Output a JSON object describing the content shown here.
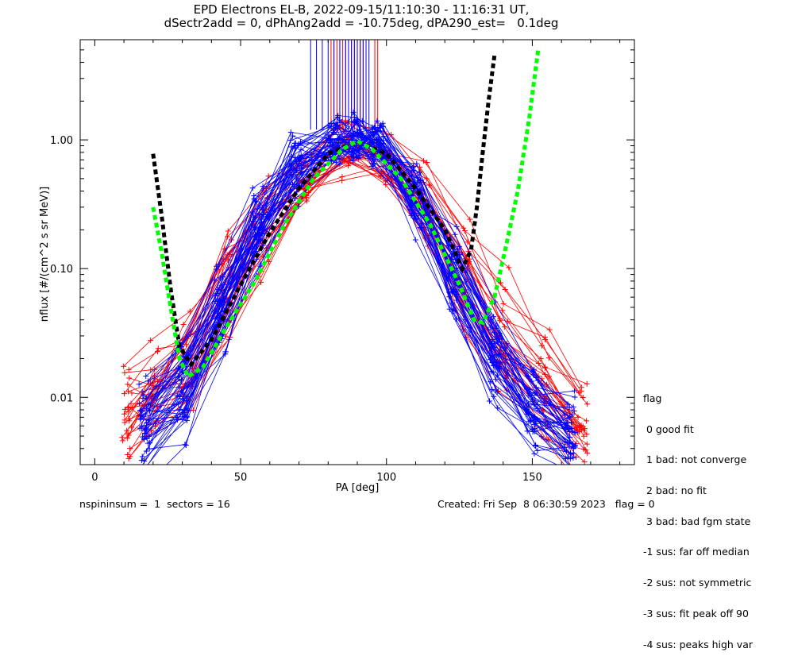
{
  "header": {
    "title_line1": "EPD Electrons EL-B, 2022-09-15/11:10:30 - 11:16:31 UT,",
    "title_line2": "dSectr2add = 0, dPhAng2add = -10.75deg, dPA290_est=   0.1deg"
  },
  "chart_data": {
    "type": "line",
    "xlabel": "PA [deg]",
    "ylabel": "nflux [#/(cm^2 s sr MeV)]",
    "xlim": [
      -5,
      185
    ],
    "ylim": [
      0.003,
      6.0
    ],
    "yscale": "log",
    "x_ticks": [
      0,
      50,
      100,
      150
    ],
    "x_tick_labels": [
      "0",
      "50",
      "100",
      "150"
    ],
    "y_ticks": [
      0.01,
      0.1,
      1.0
    ],
    "y_tick_labels": [
      "0.01",
      "0.10",
      "1.00"
    ],
    "colors": {
      "red_series": "#ff0000",
      "blue_series": "#0000ff",
      "black_fit": "#000000",
      "green_fit": "#00ff00"
    },
    "fit_curves": [
      {
        "color": "black",
        "x": [
          20,
          23,
          26,
          29,
          33,
          40,
          50,
          60,
          70,
          80,
          90,
          100,
          110,
          120,
          126,
          129,
          131,
          133,
          135,
          137
        ],
        "y": [
          0.78,
          0.25,
          0.07,
          0.025,
          0.018,
          0.028,
          0.075,
          0.19,
          0.42,
          0.78,
          0.97,
          0.78,
          0.42,
          0.2,
          0.1,
          0.14,
          0.3,
          0.8,
          2.0,
          4.5
        ]
      },
      {
        "color": "green",
        "x": [
          20,
          23,
          26,
          29,
          32,
          37,
          45,
          55,
          65,
          75,
          85,
          90,
          95,
          105,
          115,
          125,
          130,
          133,
          137,
          141,
          145,
          149,
          152
        ],
        "y": [
          0.3,
          0.13,
          0.05,
          0.02,
          0.0145,
          0.017,
          0.035,
          0.08,
          0.22,
          0.5,
          0.85,
          0.98,
          0.85,
          0.5,
          0.22,
          0.075,
          0.04,
          0.038,
          0.06,
          0.15,
          0.4,
          1.5,
          5.0
        ]
      }
    ],
    "series_red": {
      "color": "red",
      "pa": [
        11,
        20,
        32,
        45,
        58,
        72,
        86,
        100,
        113,
        127,
        140,
        154,
        167
      ],
      "curves": [
        [
          0.008,
          0.011,
          0.02,
          0.08,
          0.22,
          0.5,
          0.85,
          0.6,
          0.3,
          0.09,
          0.03,
          0.014,
          0.006
        ],
        [
          0.006,
          0.008,
          0.012,
          0.05,
          0.16,
          0.4,
          0.8,
          0.55,
          0.22,
          0.05,
          0.018,
          0.008,
          0.004
        ],
        [
          0.012,
          0.016,
          0.03,
          0.1,
          0.3,
          0.7,
          1.0,
          0.8,
          0.45,
          0.14,
          0.05,
          0.02,
          0.009
        ],
        [
          0.005,
          0.007,
          0.008,
          0.03,
          0.1,
          0.3,
          0.7,
          0.45,
          0.18,
          0.04,
          0.012,
          0.006,
          0.003
        ],
        [
          0.009,
          0.013,
          0.025,
          0.12,
          0.28,
          0.6,
          0.9,
          0.7,
          0.35,
          0.1,
          0.04,
          0.016,
          0.007
        ],
        [
          0.007,
          0.009,
          0.015,
          0.06,
          0.2,
          0.5,
          0.88,
          0.62,
          0.26,
          0.07,
          0.025,
          0.01,
          0.005
        ],
        [
          0.01,
          0.014,
          0.018,
          0.07,
          0.18,
          0.45,
          0.82,
          0.58,
          0.25,
          0.06,
          0.02,
          0.011,
          0.006
        ],
        [
          0.013,
          0.02,
          0.035,
          0.15,
          0.35,
          0.75,
          0.95,
          0.85,
          0.5,
          0.2,
          0.07,
          0.03,
          0.012
        ],
        [
          0.004,
          0.006,
          0.01,
          0.04,
          0.14,
          0.38,
          0.78,
          0.5,
          0.2,
          0.05,
          0.015,
          0.007,
          0.0035
        ],
        [
          0.008,
          0.012,
          0.022,
          0.09,
          0.26,
          0.55,
          0.9,
          0.66,
          0.3,
          0.08,
          0.03,
          0.012,
          0.006
        ]
      ]
    },
    "series_blue": {
      "color": "blue",
      "pa": [
        17,
        30,
        43,
        56,
        69,
        82,
        90,
        97,
        110,
        123,
        137,
        150,
        163
      ],
      "curves": [
        [
          0.006,
          0.012,
          0.05,
          0.22,
          0.6,
          0.95,
          1.05,
          0.9,
          0.35,
          0.09,
          0.02,
          0.008,
          0.005
        ],
        [
          0.004,
          0.008,
          0.03,
          0.15,
          0.5,
          0.9,
          1.0,
          0.85,
          0.28,
          0.06,
          0.014,
          0.006,
          0.004
        ],
        [
          0.008,
          0.02,
          0.08,
          0.3,
          0.75,
          1.0,
          1.1,
          0.95,
          0.45,
          0.12,
          0.03,
          0.012,
          0.007
        ],
        [
          0.005,
          0.01,
          0.04,
          0.18,
          0.55,
          0.92,
          1.02,
          0.88,
          0.3,
          0.07,
          0.017,
          0.007,
          0.004
        ],
        [
          0.01,
          0.025,
          0.1,
          0.35,
          0.8,
          1.05,
          1.15,
          1.0,
          0.5,
          0.15,
          0.04,
          0.015,
          0.008
        ],
        [
          0.003,
          0.006,
          0.025,
          0.12,
          0.45,
          0.85,
          0.98,
          0.8,
          0.25,
          0.05,
          0.012,
          0.005,
          0.003
        ],
        [
          0.007,
          0.015,
          0.06,
          0.25,
          0.65,
          0.97,
          1.07,
          0.92,
          0.4,
          0.1,
          0.025,
          0.01,
          0.006
        ],
        [
          0.009,
          0.02,
          0.06,
          0.28,
          0.7,
          1.0,
          1.1,
          0.95,
          0.42,
          0.11,
          0.03,
          0.012,
          0.006
        ],
        [
          0.006,
          0.011,
          0.045,
          0.2,
          0.58,
          0.93,
          1.03,
          0.9,
          0.33,
          0.08,
          0.018,
          0.008,
          0.005
        ],
        [
          0.005,
          0.013,
          0.055,
          0.24,
          0.63,
          0.96,
          1.06,
          0.91,
          0.38,
          0.095,
          0.022,
          0.009,
          0.0055
        ],
        [
          0.008,
          0.017,
          0.07,
          0.27,
          0.72,
          0.99,
          1.09,
          0.94,
          0.43,
          0.12,
          0.028,
          0.011,
          0.0065
        ],
        [
          0.0045,
          0.009,
          0.035,
          0.17,
          0.52,
          0.9,
          1.0,
          0.86,
          0.29,
          0.065,
          0.016,
          0.007,
          0.0045
        ]
      ]
    },
    "vertical_lines": {
      "red_x": [
        81,
        82,
        83,
        84,
        85,
        86,
        87,
        88,
        89,
        90,
        91,
        92,
        96,
        97
      ],
      "blue_x": [
        74,
        76,
        78,
        80,
        82,
        84,
        86,
        87,
        88,
        89,
        90,
        91,
        92,
        93,
        94
      ],
      "y_from": 1.2
    }
  },
  "legend": {
    "title": "flag",
    "items": [
      " 0 good fit",
      " 1 bad: not converge",
      " 2 bad: no fit",
      " 3 bad: bad fgm state",
      "-1 sus: far off median",
      "-2 sus: not symmetric",
      "-3 sus: fit peak off 90",
      "-4 sus: peaks high var"
    ]
  },
  "footer": {
    "left": "nspininsum =  1  sectors = 16",
    "right": "Created: Fri Sep  8 06:30:59 2023   flag = 0"
  }
}
